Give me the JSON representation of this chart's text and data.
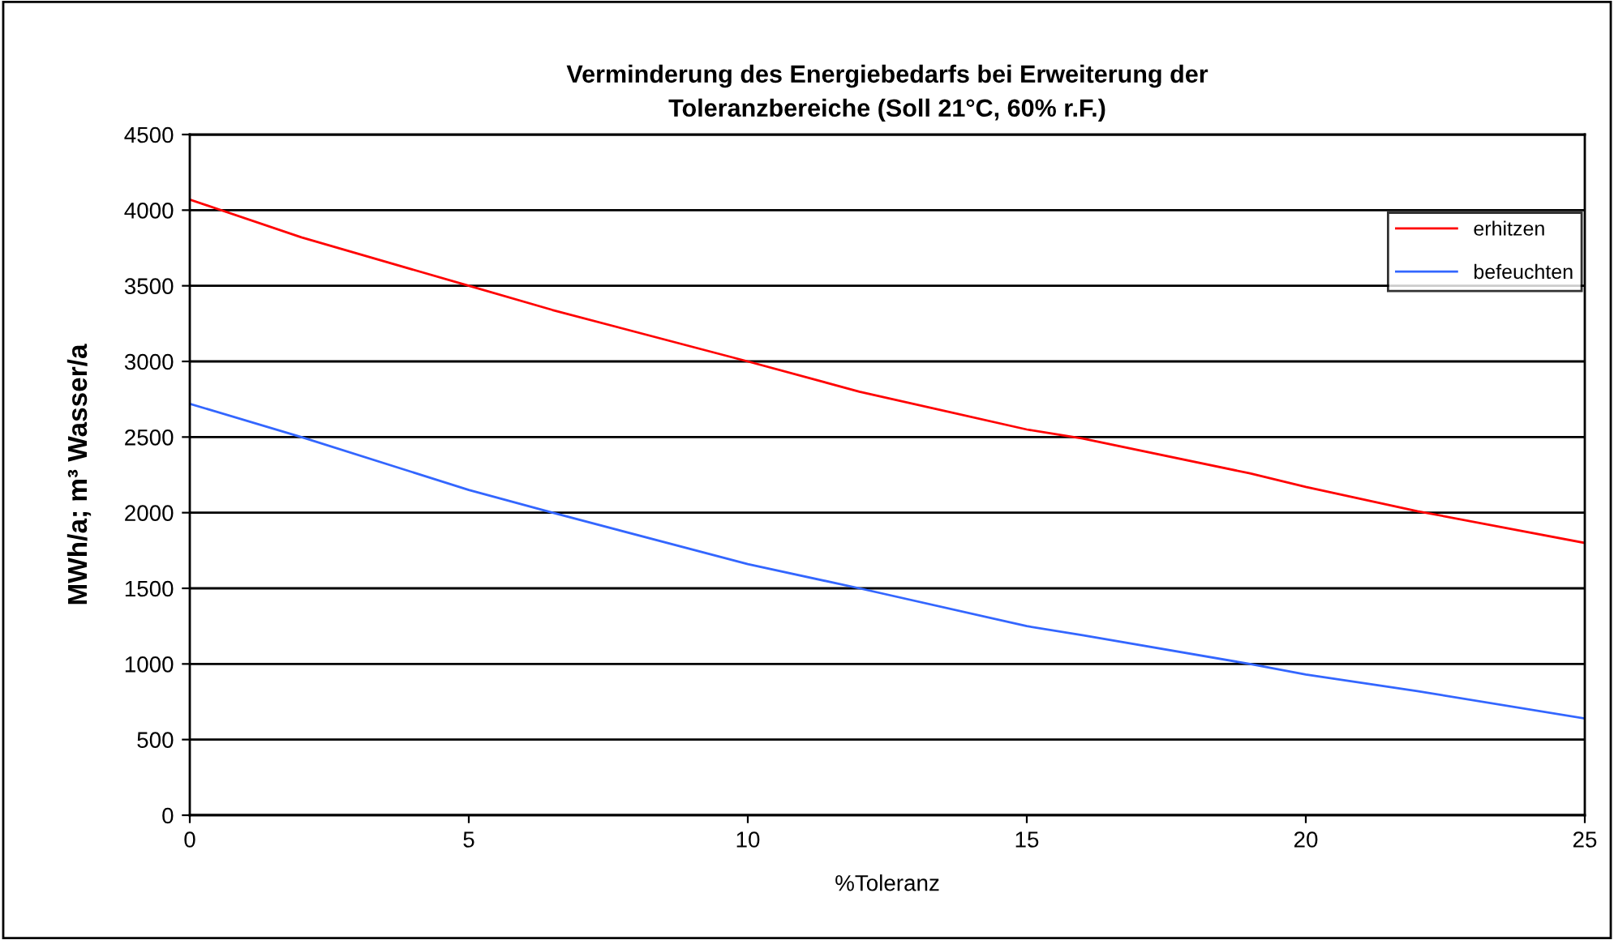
{
  "chart_data": {
    "type": "line",
    "title": "Verminderung des Energiebedarfs bei Erweiterung der\nToleranzbereiche (Soll 21°C, 60% r.F.)",
    "xlabel": "%Toleranz",
    "ylabel": "MWh/a; m³ Wasser/a",
    "x": [
      0,
      2,
      5,
      6.5,
      10,
      12,
      15,
      16,
      19,
      20,
      22,
      25
    ],
    "series": [
      {
        "name": "erhitzen",
        "color": "#ff0000",
        "values": [
          4070,
          3820,
          3500,
          3340,
          3000,
          2800,
          2550,
          2490,
          2260,
          2170,
          2010,
          1800
        ]
      },
      {
        "name": "befeuchten",
        "color": "#3366ff",
        "values": [
          2720,
          2500,
          2150,
          2000,
          1660,
          1500,
          1250,
          1190,
          1000,
          930,
          820,
          640
        ]
      }
    ],
    "xlim": [
      0,
      25
    ],
    "xticks": [
      0,
      5,
      10,
      15,
      20,
      25
    ],
    "ylim": [
      0,
      4500
    ],
    "yticks": [
      0,
      500,
      1000,
      1500,
      2000,
      2500,
      3000,
      3500,
      4000,
      4500
    ],
    "grid": "y",
    "legend": "top right",
    "marker": "none",
    "line_style": "solid"
  }
}
